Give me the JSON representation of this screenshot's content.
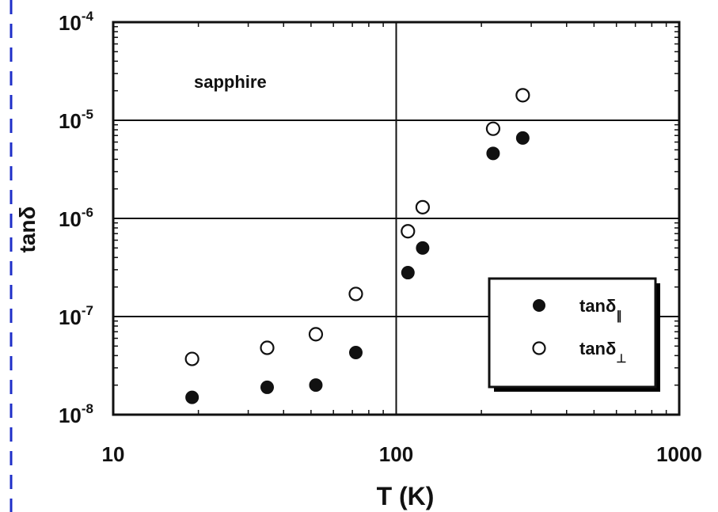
{
  "chart_data": {
    "type": "scatter",
    "title": "",
    "annotation": "sapphire",
    "xlabel": "T (K)",
    "ylabel": "tanδ",
    "xscale": "log",
    "yscale": "log",
    "xlim": [
      10,
      1000
    ],
    "ylim": [
      1e-08,
      0.0001
    ],
    "grid": "major",
    "x_ticks": [
      {
        "value": 10,
        "label": "10"
      },
      {
        "value": 100,
        "label": "100"
      },
      {
        "value": 1000,
        "label": "1000"
      }
    ],
    "y_ticks": [
      {
        "value": 1e-08,
        "base": "10",
        "exp": "-8"
      },
      {
        "value": 1e-07,
        "base": "10",
        "exp": "-7"
      },
      {
        "value": 1e-06,
        "base": "10",
        "exp": "-6"
      },
      {
        "value": 1e-05,
        "base": "10",
        "exp": "-5"
      },
      {
        "value": 0.0001,
        "base": "10",
        "exp": "-4"
      }
    ],
    "legend_position": "bottom-right",
    "series": [
      {
        "name": "tanδ∥",
        "name_main": "tanδ",
        "name_sub": "∥",
        "marker": "filled-circle",
        "x": [
          19,
          35,
          52,
          72,
          110,
          124,
          220,
          280
        ],
        "y": [
          1.5e-08,
          1.9e-08,
          2e-08,
          4.3e-08,
          2.8e-07,
          5e-07,
          4.6e-06,
          6.6e-06
        ]
      },
      {
        "name": "tanδ⊥",
        "name_main": "tanδ",
        "name_sub": "⊥",
        "marker": "open-circle",
        "x": [
          19,
          35,
          52,
          72,
          110,
          124,
          220,
          280
        ],
        "y": [
          3.7e-08,
          4.8e-08,
          6.6e-08,
          1.7e-07,
          7.4e-07,
          1.3e-06,
          8.2e-06,
          1.8e-05
        ]
      }
    ]
  }
}
